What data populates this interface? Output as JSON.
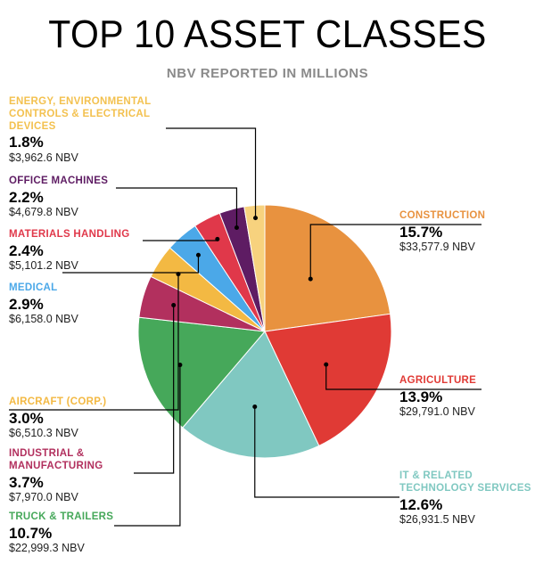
{
  "header": {
    "title": "TOP 10 ASSET CLASSES",
    "subtitle": "NBV REPORTED IN MILLIONS"
  },
  "chart_data": {
    "type": "pie",
    "title": "TOP 10 ASSET CLASSES",
    "subtitle": "NBV REPORTED IN MILLIONS",
    "slices": [
      {
        "name": "CONSTRUCTION",
        "percent": "15.7%",
        "value": 15.7,
        "nbv": "$33,577.9 NBV",
        "color": "#e8923f"
      },
      {
        "name": "AGRICULTURE",
        "percent": "13.9%",
        "value": 13.9,
        "nbv": "$29,791.0 NBV",
        "color": "#e03a35"
      },
      {
        "name": "IT & RELATED TECHNOLOGY SERVICES",
        "percent": "12.6%",
        "value": 12.6,
        "nbv": "$26,931.5 NBV",
        "color": "#80c8c1"
      },
      {
        "name": "TRUCK & TRAILERS",
        "percent": "10.7%",
        "value": 10.7,
        "nbv": "$22,999.3 NBV",
        "color": "#46a85a"
      },
      {
        "name": "INDUSTRIAL & MANUFACTURING",
        "percent": "3.7%",
        "value": 3.7,
        "nbv": "$7,970.0 NBV",
        "color": "#b2305e"
      },
      {
        "name": "AIRCRAFT (CORP.)",
        "percent": "3.0%",
        "value": 3.0,
        "nbv": "$6,510.3 NBV",
        "color": "#f3b943"
      },
      {
        "name": "MEDICAL",
        "percent": "2.9%",
        "value": 2.9,
        "nbv": "$6,158.0 NBV",
        "color": "#4ba8e8"
      },
      {
        "name": "MATERIALS HANDLING",
        "percent": "2.4%",
        "value": 2.4,
        "nbv": "$5,101.2 NBV",
        "color": "#e0384a"
      },
      {
        "name": "OFFICE MACHINES",
        "percent": "2.2%",
        "value": 2.2,
        "nbv": "$4,679.8 NBV",
        "color": "#5e1c63"
      },
      {
        "name": "ENERGY, ENVIRONMENTAL CONTROLS & ELECTRICAL DEVICES",
        "percent": "1.8%",
        "value": 1.8,
        "nbv": "$3,962.6 NBV",
        "color": "#f7d27e"
      }
    ]
  }
}
